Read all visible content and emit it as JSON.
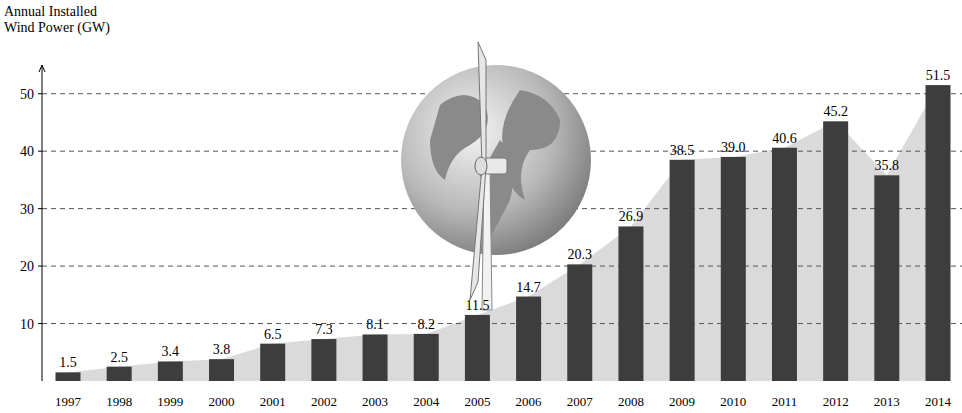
{
  "chart_data": {
    "type": "bar",
    "y_label": "Annual Installed Wind Power (GW)",
    "categories": [
      "1997",
      "1998",
      "1999",
      "2000",
      "2001",
      "2002",
      "2003",
      "2004",
      "2005",
      "2006",
      "2007",
      "2008",
      "2009",
      "2010",
      "2011",
      "2012",
      "2013",
      "2014"
    ],
    "values": [
      1.5,
      2.5,
      3.4,
      3.8,
      6.5,
      7.3,
      8.1,
      8.2,
      11.5,
      14.7,
      20.3,
      26.9,
      38.5,
      39.0,
      40.6,
      45.2,
      35.8,
      51.5
    ],
    "value_labels": [
      "1.5",
      "2.5",
      "3.4",
      "3.8",
      "6.5",
      "7.3",
      "8.1",
      "8.2",
      "11.5",
      "14.7",
      "20.3",
      "26.9",
      "38.5",
      "39.0",
      "40.6",
      "45.2",
      "35.8",
      "51.5"
    ],
    "color": "#3d3d3d",
    "ylim": [
      0,
      55
    ],
    "yticks": [
      10,
      20,
      30,
      40,
      50
    ],
    "grid": true,
    "data_labels": true
  }
}
